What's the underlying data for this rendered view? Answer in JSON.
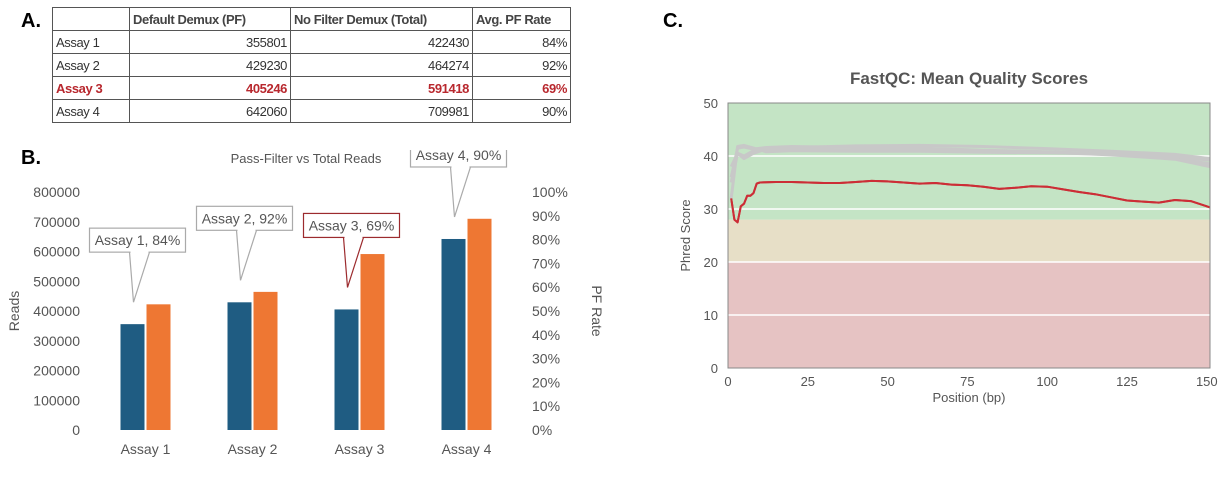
{
  "panels": {
    "a": "A.",
    "b": "B.",
    "c": "C."
  },
  "table": {
    "headers": [
      "",
      "Default Demux (PF)",
      "No Filter Demux (Total)",
      "Avg. PF Rate"
    ],
    "rows": [
      {
        "assay": "Assay 1",
        "pf": "355801",
        "total": "422430",
        "rate": "84%",
        "highlight": false
      },
      {
        "assay": "Assay 2",
        "pf": "429230",
        "total": "464274",
        "rate": "92%",
        "highlight": false
      },
      {
        "assay": "Assay 3",
        "pf": "405246",
        "total": "591418",
        "rate": "69%",
        "highlight": true
      },
      {
        "assay": "Assay 4",
        "pf": "642060",
        "total": "709981",
        "rate": "90%",
        "highlight": false
      }
    ]
  },
  "chart_data": [
    {
      "type": "bar",
      "title": "Pass-Filter vs Total Reads",
      "xlabel": "",
      "ylabel": "Reads",
      "y2label": "PF Rate",
      "categories": [
        "Assay 1",
        "Assay 2",
        "Assay 3",
        "Assay 4"
      ],
      "series": [
        {
          "name": "Default Demux (PF)",
          "values": [
            355801,
            429230,
            405246,
            642060
          ],
          "color": "#1f5c82"
        },
        {
          "name": "No Filter Demux (Total)",
          "values": [
            422430,
            464274,
            591418,
            709981
          ],
          "color": "#ee7733"
        }
      ],
      "ylim": [
        0,
        800000
      ],
      "yticks": [
        "0",
        "100000",
        "200000",
        "300000",
        "400000",
        "500000",
        "600000",
        "700000",
        "800000"
      ],
      "y2lim": [
        0,
        100
      ],
      "y2ticks": [
        "0%",
        "10%",
        "20%",
        "30%",
        "40%",
        "50%",
        "60%",
        "70%",
        "80%",
        "90%",
        "100%"
      ],
      "callouts": [
        {
          "label": "Assay 1, 84%",
          "category": "Assay 1",
          "highlight": false
        },
        {
          "label": "Assay 2, 92%",
          "category": "Assay 2",
          "highlight": false
        },
        {
          "label": "Assay 3, 69%",
          "category": "Assay 3",
          "highlight": true
        },
        {
          "label": "Assay 4, 90%",
          "category": "Assay 4",
          "highlight": false
        }
      ],
      "legend_position": "bottom",
      "grid": false
    },
    {
      "type": "line",
      "title": "FastQC: Mean Quality Scores",
      "xlabel": "Position (bp)",
      "ylabel": "Phred Score",
      "xlim": [
        0,
        151
      ],
      "ylim": [
        0,
        50
      ],
      "xticks": [
        0,
        25,
        50,
        75,
        100,
        125,
        150
      ],
      "yticks": [
        0,
        10,
        20,
        30,
        40,
        50
      ],
      "background_bands": [
        {
          "from": 0,
          "to": 20,
          "color": "#e6c3c3"
        },
        {
          "from": 20,
          "to": 28,
          "color": "#e7dfc7"
        },
        {
          "from": 28,
          "to": 50,
          "color": "#c4e4c5"
        }
      ],
      "grid": true,
      "series": [
        {
          "color": "#cc2d36",
          "x": [
            1,
            2,
            3,
            4,
            5,
            6,
            7,
            8,
            9,
            10,
            15,
            20,
            25,
            30,
            35,
            40,
            45,
            50,
            55,
            60,
            65,
            70,
            75,
            80,
            85,
            90,
            95,
            100,
            105,
            110,
            115,
            120,
            125,
            130,
            135,
            140,
            145,
            150,
            151
          ],
          "values": [
            32,
            28,
            27.5,
            30.5,
            31,
            32.5,
            32.5,
            33,
            34.8,
            35,
            35.1,
            35.1,
            35,
            34.9,
            34.9,
            35.1,
            35.3,
            35.2,
            35,
            34.8,
            34.9,
            34.6,
            34.5,
            34.2,
            33.8,
            34,
            34.3,
            34.2,
            33.7,
            33.2,
            32.8,
            32.2,
            31.6,
            31.4,
            31.2,
            31.7,
            31.5,
            30.5,
            30.3
          ]
        },
        {
          "color": "#c8c8c8",
          "x": [
            1,
            3,
            5,
            8,
            12,
            20,
            40,
            60,
            80,
            100,
            120,
            140,
            151
          ],
          "values": [
            38,
            40.5,
            40,
            41,
            41.2,
            41.6,
            41.9,
            42,
            41.8,
            41.4,
            40.9,
            40.3,
            39.5
          ]
        },
        {
          "color": "#c8c8c8",
          "x": [
            1,
            3,
            5,
            8,
            12,
            20,
            40,
            60,
            80,
            100,
            120,
            140,
            151
          ],
          "values": [
            36,
            41.5,
            41.7,
            41.3,
            41.6,
            41.8,
            41.6,
            41.5,
            41.1,
            40.8,
            40.4,
            39.6,
            38.5
          ]
        },
        {
          "color": "#c8c8c8",
          "x": [
            1,
            3,
            5,
            8,
            12,
            20,
            40,
            60,
            80,
            100,
            120,
            140,
            151
          ],
          "values": [
            35,
            40.5,
            39.5,
            40.5,
            41.3,
            41.2,
            41.1,
            41.2,
            41,
            40.7,
            40.2,
            39.4,
            38
          ]
        },
        {
          "color": "#c8c8c8",
          "x": [
            1,
            3,
            5,
            8,
            12,
            20,
            40,
            60,
            80,
            100,
            120,
            140,
            151
          ],
          "values": [
            32,
            41.8,
            42,
            41.5,
            40.8,
            41,
            40.9,
            40.9,
            40.7,
            40.6,
            40.4,
            39.9,
            39.2
          ]
        }
      ]
    }
  ]
}
